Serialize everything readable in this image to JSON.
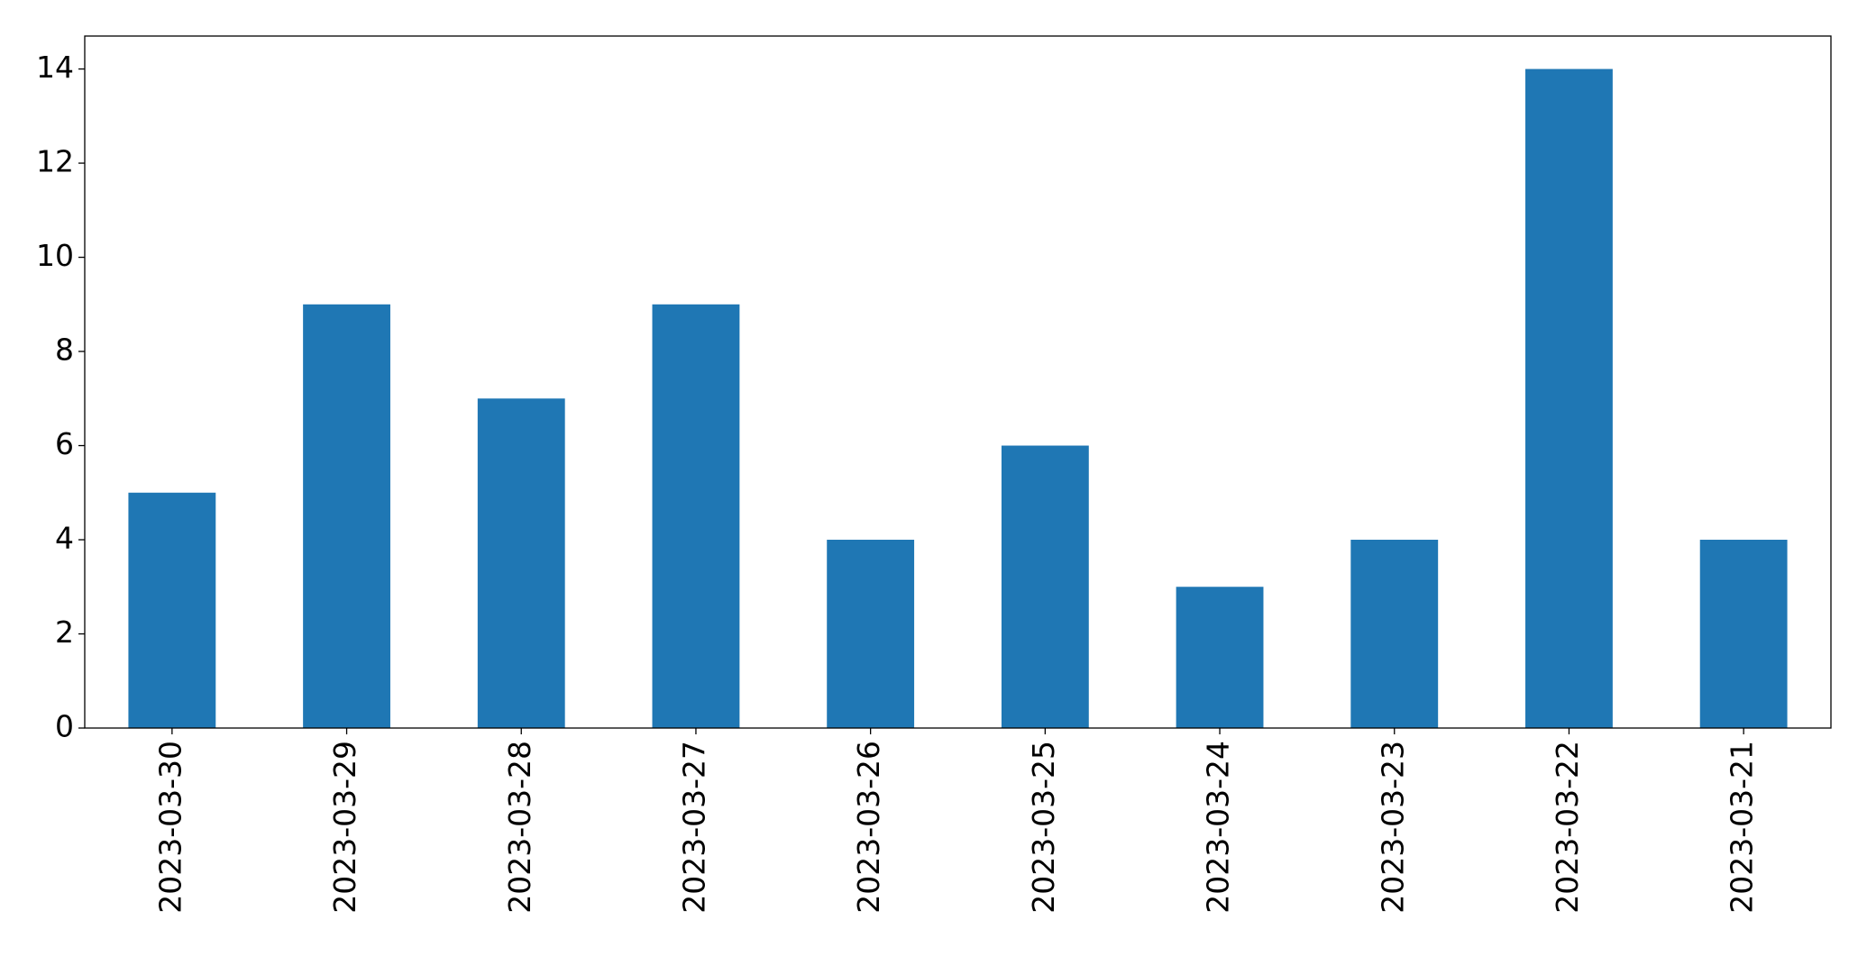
{
  "chart_data": {
    "type": "bar",
    "categories": [
      "2023-03-30",
      "2023-03-29",
      "2023-03-28",
      "2023-03-27",
      "2023-03-26",
      "2023-03-25",
      "2023-03-24",
      "2023-03-23",
      "2023-03-22",
      "2023-03-21"
    ],
    "values": [
      5,
      9,
      7,
      9,
      4,
      6,
      3,
      4,
      14,
      4
    ],
    "color": "#1f77b4",
    "ylim": [
      0,
      14.7
    ],
    "yticks": [
      0,
      2,
      4,
      6,
      8,
      10,
      12,
      14
    ],
    "grid": false
  }
}
